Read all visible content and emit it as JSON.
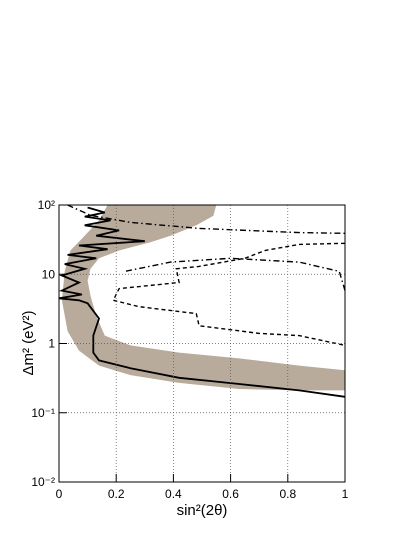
{
  "chart_data": {
    "type": "line",
    "xlabel": "sin²(2θ)",
    "ylabel": "Δm² (eV²)",
    "xlim": [
      0,
      1
    ],
    "ylim": [
      0.01,
      100
    ],
    "ylog": true,
    "grid": true,
    "xticks": [
      0,
      0.2,
      0.4,
      0.6,
      0.8,
      1
    ],
    "yticks": [
      {
        "value": 0.01,
        "label": "10⁻²"
      },
      {
        "value": 0.1,
        "label": "10⁻¹"
      },
      1,
      10,
      {
        "value": 100,
        "label": "10²"
      }
    ],
    "series": [
      {
        "style": "fill",
        "color": "#b8ab9c",
        "x": [
          0.17,
          0.55,
          0.54,
          0.48,
          0.39,
          0.32,
          0.21,
          0.14,
          0.11,
          0.1,
          0.11,
          0.13,
          0.16,
          0.25,
          0.42,
          0.63,
          0.84,
          1,
          1,
          0.84,
          0.63,
          0.42,
          0.25,
          0.14,
          0.07,
          0.03,
          0.01,
          0.02,
          0.04,
          0.09,
          0.14
        ],
        "values": [
          100,
          100,
          70,
          51,
          36,
          29,
          22,
          17,
          12,
          8.1,
          4.9,
          2.5,
          1.3,
          0.94,
          0.74,
          0.61,
          0.48,
          0.41,
          0.21,
          0.21,
          0.22,
          0.27,
          0.35,
          0.48,
          0.79,
          1.5,
          4.2,
          11,
          22,
          36,
          60
        ]
      },
      {
        "style": "solid",
        "color": "#000000",
        "x": [
          0.1,
          0.16,
          0.09,
          0.18,
          0.09,
          0.21,
          0.13,
          0.3,
          0.07,
          0.17,
          0.03,
          0.13,
          0.02,
          0.09,
          0.01,
          0.07,
          0.01,
          0.08,
          0.0,
          0.07,
          0.1,
          0.14,
          0.12,
          0.12,
          0.14,
          0.25,
          0.42,
          0.63,
          0.84,
          1
        ],
        "values": [
          92,
          78,
          68,
          60,
          51,
          43,
          36,
          30,
          26,
          23,
          19,
          17,
          14,
          12,
          9.6,
          7.6,
          5.8,
          5.1,
          4.5,
          4.2,
          3.8,
          2.3,
          1.3,
          0.74,
          0.57,
          0.44,
          0.32,
          0.26,
          0.21,
          0.17
        ]
      },
      {
        "style": "dashed",
        "color": "#000000",
        "x": [
          1,
          0.84,
          0.72,
          0.65,
          0.49,
          0.41,
          0.42,
          0.21,
          0.19,
          0.28,
          0.48,
          0.49,
          0.7,
          0.84,
          1
        ],
        "values": [
          28,
          27,
          22,
          17,
          13,
          12,
          7.6,
          6.2,
          4.2,
          3.4,
          2.7,
          1.8,
          1.4,
          1.3,
          0.94
        ]
      },
      {
        "style": "dashdot",
        "color": "#000000",
        "x": [
          0.03,
          0.11,
          0.25,
          0.49,
          0.84,
          1,
          null,
          1,
          0.98,
          0.84,
          0.6,
          0.39,
          0.23
        ],
        "values": [
          100,
          71,
          56,
          46,
          40,
          39,
          null,
          5.8,
          11,
          15,
          17,
          15,
          11
        ]
      }
    ]
  }
}
